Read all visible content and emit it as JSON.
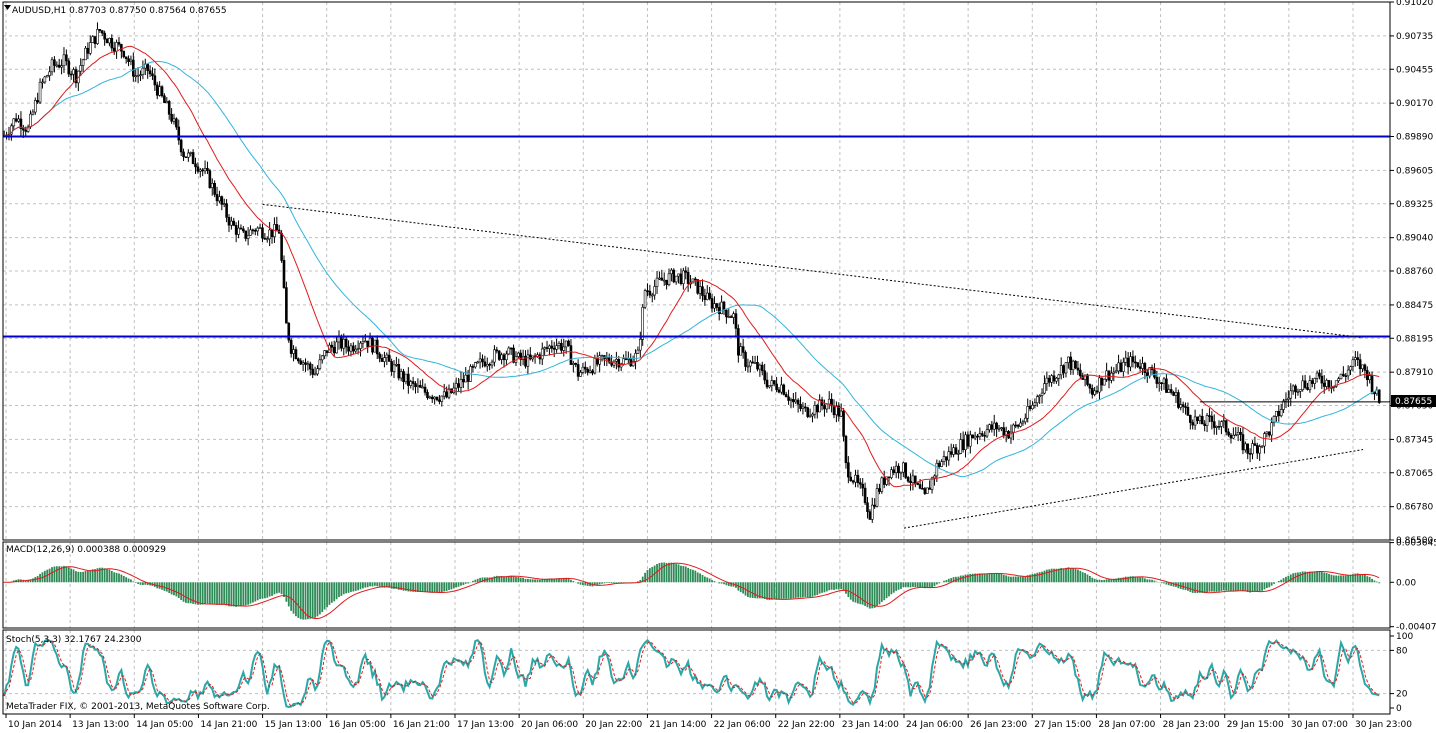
{
  "chart_data": {
    "type": "candlestick",
    "symbol_header": "AUDUSD,H1  0.87703 0.87750 0.87564 0.87655",
    "current_price": "0.87655",
    "price_axis": {
      "ylim": [
        0.865,
        0.9102
      ],
      "ticks": [
        "0.91020",
        "0.90735",
        "0.90455",
        "0.90170",
        "0.89890",
        "0.89605",
        "0.89325",
        "0.89040",
        "0.88760",
        "0.88475",
        "0.88195",
        "0.87910",
        "0.87630",
        "0.87345",
        "0.87065",
        "0.86780",
        "0.86500"
      ]
    },
    "horizontal_levels": [
      0.8989,
      0.8821
    ],
    "trendlines": [
      {
        "from": [
          "15 Jan 13:00",
          0.8932
        ],
        "to": [
          "30 Jan 23:00",
          0.882
        ]
      },
      {
        "from": [
          "24 Jan 06:00",
          0.866
        ],
        "to": [
          "30 Jan 23:00",
          0.8726
        ]
      }
    ],
    "support_line": 0.8766,
    "close_path": [
      [
        0,
        0.899
      ],
      [
        5,
        0.9005
      ],
      [
        10,
        0.8995
      ],
      [
        15,
        0.903
      ],
      [
        20,
        0.9048
      ],
      [
        25,
        0.9052
      ],
      [
        30,
        0.904
      ],
      [
        35,
        0.9063
      ],
      [
        40,
        0.9078
      ],
      [
        45,
        0.9068
      ],
      [
        50,
        0.9061
      ],
      [
        55,
        0.904
      ],
      [
        60,
        0.9045
      ],
      [
        65,
        0.9025
      ],
      [
        70,
        0.9005
      ],
      [
        75,
        0.8975
      ],
      [
        80,
        0.8968
      ],
      [
        85,
        0.8955
      ],
      [
        90,
        0.8935
      ],
      [
        95,
        0.8915
      ],
      [
        100,
        0.8905
      ],
      [
        105,
        0.8912
      ],
      [
        110,
        0.8908
      ],
      [
        115,
        0.891
      ],
      [
        118,
        0.883
      ],
      [
        120,
        0.8812
      ],
      [
        125,
        0.88
      ],
      [
        130,
        0.879
      ],
      [
        135,
        0.881
      ],
      [
        140,
        0.8815
      ],
      [
        145,
        0.8812
      ],
      [
        150,
        0.882
      ],
      [
        155,
        0.8812
      ],
      [
        160,
        0.88
      ],
      [
        165,
        0.879
      ],
      [
        170,
        0.878
      ],
      [
        175,
        0.8775
      ],
      [
        180,
        0.8772
      ],
      [
        185,
        0.877
      ],
      [
        190,
        0.878
      ],
      [
        195,
        0.879
      ],
      [
        200,
        0.88
      ],
      [
        205,
        0.8805
      ],
      [
        210,
        0.8808
      ],
      [
        215,
        0.8802
      ],
      [
        220,
        0.88
      ],
      [
        225,
        0.8808
      ],
      [
        230,
        0.8815
      ],
      [
        235,
        0.8812
      ],
      [
        240,
        0.879
      ],
      [
        245,
        0.8795
      ],
      [
        250,
        0.88
      ],
      [
        255,
        0.8802
      ],
      [
        260,
        0.88
      ],
      [
        265,
        0.8805
      ],
      [
        268,
        0.886
      ],
      [
        270,
        0.886
      ],
      [
        275,
        0.8868
      ],
      [
        280,
        0.8872
      ],
      [
        285,
        0.887
      ],
      [
        290,
        0.8862
      ],
      [
        295,
        0.885
      ],
      [
        300,
        0.8845
      ],
      [
        305,
        0.8838
      ],
      [
        307,
        0.881
      ],
      [
        310,
        0.88
      ],
      [
        315,
        0.8795
      ],
      [
        320,
        0.878
      ],
      [
        325,
        0.878
      ],
      [
        330,
        0.8765
      ],
      [
        335,
        0.8758
      ],
      [
        340,
        0.8762
      ],
      [
        345,
        0.8765
      ],
      [
        350,
        0.8755
      ],
      [
        352,
        0.8712
      ],
      [
        355,
        0.8702
      ],
      [
        360,
        0.8685
      ],
      [
        362,
        0.8672
      ],
      [
        365,
        0.869
      ],
      [
        370,
        0.8708
      ],
      [
        375,
        0.8712
      ],
      [
        380,
        0.8698
      ],
      [
        385,
        0.8685
      ],
      [
        390,
        0.8712
      ],
      [
        395,
        0.8722
      ],
      [
        400,
        0.873
      ],
      [
        405,
        0.8738
      ],
      [
        410,
        0.8742
      ],
      [
        415,
        0.8745
      ],
      [
        420,
        0.874
      ],
      [
        425,
        0.8748
      ],
      [
        430,
        0.8762
      ],
      [
        435,
        0.8782
      ],
      [
        440,
        0.879
      ],
      [
        445,
        0.88
      ],
      [
        450,
        0.8788
      ],
      [
        455,
        0.8775
      ],
      [
        460,
        0.8788
      ],
      [
        465,
        0.8792
      ],
      [
        470,
        0.88
      ],
      [
        475,
        0.8798
      ],
      [
        480,
        0.879
      ],
      [
        485,
        0.878
      ],
      [
        490,
        0.877
      ],
      [
        495,
        0.8755
      ],
      [
        500,
        0.8748
      ],
      [
        505,
        0.875
      ],
      [
        510,
        0.8745
      ],
      [
        515,
        0.8738
      ],
      [
        520,
        0.8725
      ],
      [
        525,
        0.873
      ],
      [
        530,
        0.8745
      ],
      [
        535,
        0.8765
      ],
      [
        540,
        0.878
      ],
      [
        545,
        0.8782
      ],
      [
        550,
        0.8785
      ],
      [
        555,
        0.8782
      ],
      [
        560,
        0.8788
      ],
      [
        565,
        0.88
      ],
      [
        570,
        0.879
      ],
      [
        575,
        0.8766
      ]
    ],
    "time_axis": [
      "10 Jan 2014",
      "13 Jan 13:00",
      "14 Jan 05:00",
      "14 Jan 21:00",
      "15 Jan 13:00",
      "16 Jan 05:00",
      "16 Jan 21:00",
      "17 Jan 13:00",
      "20 Jan 06:00",
      "20 Jan 22:00",
      "21 Jan 14:00",
      "22 Jan 06:00",
      "22 Jan 22:00",
      "23 Jan 14:00",
      "24 Jan 06:00",
      "26 Jan 23:00",
      "27 Jan 15:00",
      "28 Jan 07:00",
      "28 Jan 23:00",
      "29 Jan 15:00",
      "30 Jan 07:00",
      "30 Jan 23:00"
    ],
    "macd": {
      "label": "MACD(12,26,9) 0.000388 0.000929",
      "ticks": [
        "0.003645",
        "0.00",
        "-0.004078"
      ],
      "ylim": [
        -0.0042,
        0.0037
      ]
    },
    "stoch": {
      "label": "Stoch(5,3,3) 32.1767 24.2300",
      "ticks": [
        "100",
        "80",
        "20",
        "0"
      ]
    },
    "colors": {
      "bull": "#ffffff",
      "bear": "#000000",
      "ma_fast": "#e01b1b",
      "ma_slow": "#32b4dc",
      "level": "#0000c8",
      "macd_hist": "#2e8b57",
      "macd_signal": "#e01b1b",
      "stoch_main": "#2aa7a7",
      "stoch_signal": "#e01b1b"
    }
  },
  "footer": {
    "copyright": "MetaTrader FIX, © 2001-2013, MetaQuotes Software Corp."
  }
}
